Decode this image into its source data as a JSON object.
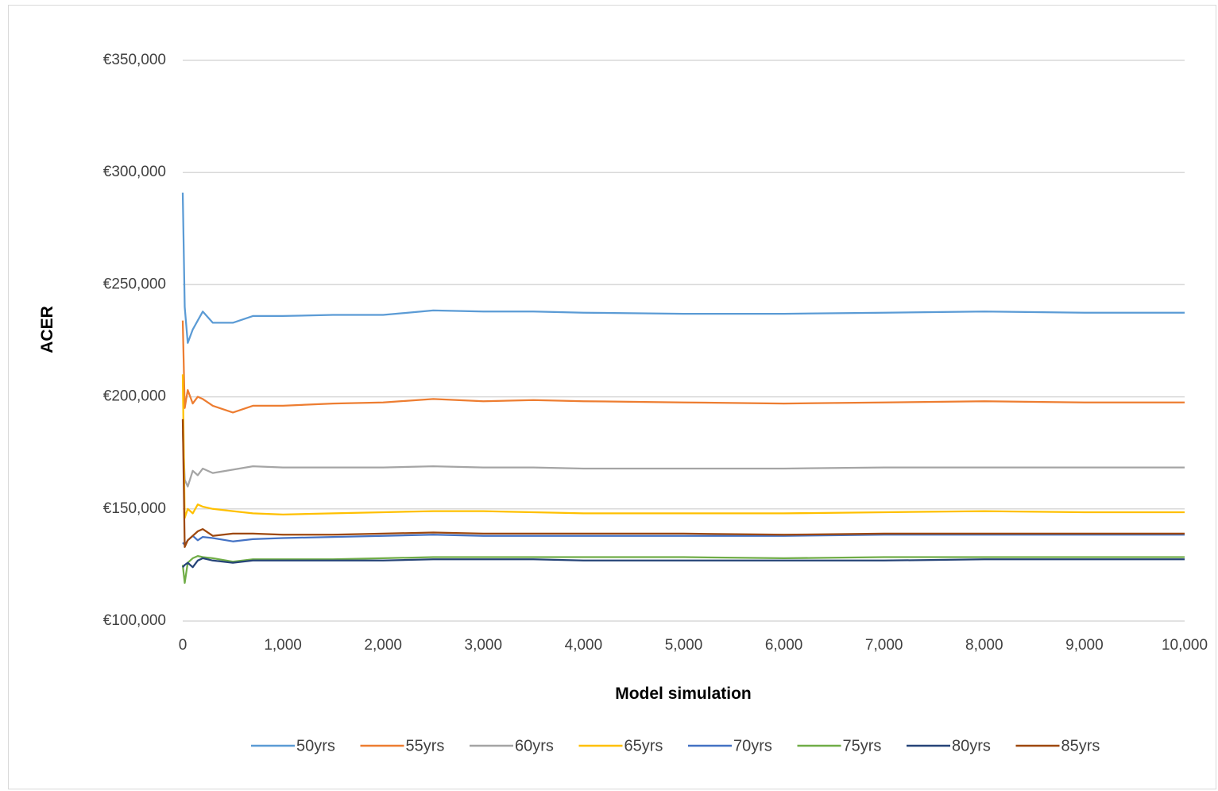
{
  "chart_data": {
    "type": "line",
    "title": "",
    "xlabel": "Model simulation",
    "ylabel": "ACER",
    "xlim": [
      0,
      10000
    ],
    "ylim": [
      100000,
      350000
    ],
    "x_ticks": [
      "0",
      "1,000",
      "2,000",
      "3,000",
      "4,000",
      "5,000",
      "6,000",
      "7,000",
      "8,000",
      "9,000",
      "10,000"
    ],
    "y_ticks": [
      "€100,000",
      "€150,000",
      "€200,000",
      "€250,000",
      "€300,000",
      "€350,000"
    ],
    "grid": "horizontal",
    "legend_position": "bottom",
    "x": [
      0,
      20,
      50,
      100,
      150,
      200,
      300,
      500,
      700,
      1000,
      1500,
      2000,
      2500,
      3000,
      3500,
      4000,
      5000,
      6000,
      7000,
      8000,
      9000,
      10000
    ],
    "series": [
      {
        "name": "50yrs",
        "color": "#5B9BD5",
        "values": [
          291000,
          240000,
          224000,
          230000,
          234000,
          238000,
          233000,
          233000,
          236000,
          236000,
          236500,
          236500,
          238500,
          238000,
          238000,
          237500,
          237000,
          237000,
          237500,
          238000,
          237500,
          237500
        ]
      },
      {
        "name": "55yrs",
        "color": "#ED7D31",
        "values": [
          234000,
          195000,
          203000,
          197000,
          200000,
          199000,
          196000,
          193000,
          196000,
          196000,
          197000,
          197500,
          199000,
          198000,
          198500,
          198000,
          197500,
          197000,
          197500,
          198000,
          197500,
          197500
        ]
      },
      {
        "name": "60yrs",
        "color": "#A5A5A5",
        "values": [
          185000,
          163000,
          160000,
          167000,
          165000,
          168000,
          166000,
          167500,
          169000,
          168500,
          168500,
          168500,
          169000,
          168500,
          168500,
          168000,
          168000,
          168000,
          168500,
          168500,
          168500,
          168500
        ]
      },
      {
        "name": "65yrs",
        "color": "#FFC000",
        "values": [
          210000,
          146000,
          150000,
          148000,
          152000,
          151000,
          150000,
          149000,
          148000,
          147500,
          148000,
          148500,
          149000,
          149000,
          148500,
          148000,
          148000,
          148000,
          148500,
          149000,
          148500,
          148500
        ]
      },
      {
        "name": "70yrs",
        "color": "#4472C4",
        "values": [
          135000,
          134000,
          136000,
          138000,
          136000,
          137500,
          137000,
          135500,
          136500,
          137000,
          137500,
          138000,
          138500,
          138000,
          138000,
          138000,
          138000,
          138000,
          138500,
          138500,
          138500,
          138500
        ]
      },
      {
        "name": "75yrs",
        "color": "#70AD47",
        "values": [
          125000,
          117000,
          126000,
          128000,
          129000,
          128500,
          128000,
          126500,
          127500,
          127500,
          127500,
          128000,
          128500,
          128500,
          128500,
          128500,
          128500,
          128000,
          128500,
          128500,
          128500,
          128500
        ]
      },
      {
        "name": "80yrs",
        "color": "#264478",
        "values": [
          124000,
          125000,
          126000,
          124000,
          127000,
          128000,
          127000,
          126000,
          127000,
          127000,
          127000,
          127000,
          127500,
          127500,
          127500,
          127000,
          127000,
          127000,
          127000,
          127500,
          127500,
          127500
        ]
      },
      {
        "name": "85yrs",
        "color": "#9E480E",
        "values": [
          190000,
          133000,
          136000,
          138000,
          140000,
          141000,
          138000,
          139000,
          139000,
          138500,
          138500,
          139000,
          139500,
          139000,
          139000,
          139000,
          139000,
          138500,
          139000,
          139000,
          139000,
          139000
        ]
      }
    ]
  }
}
